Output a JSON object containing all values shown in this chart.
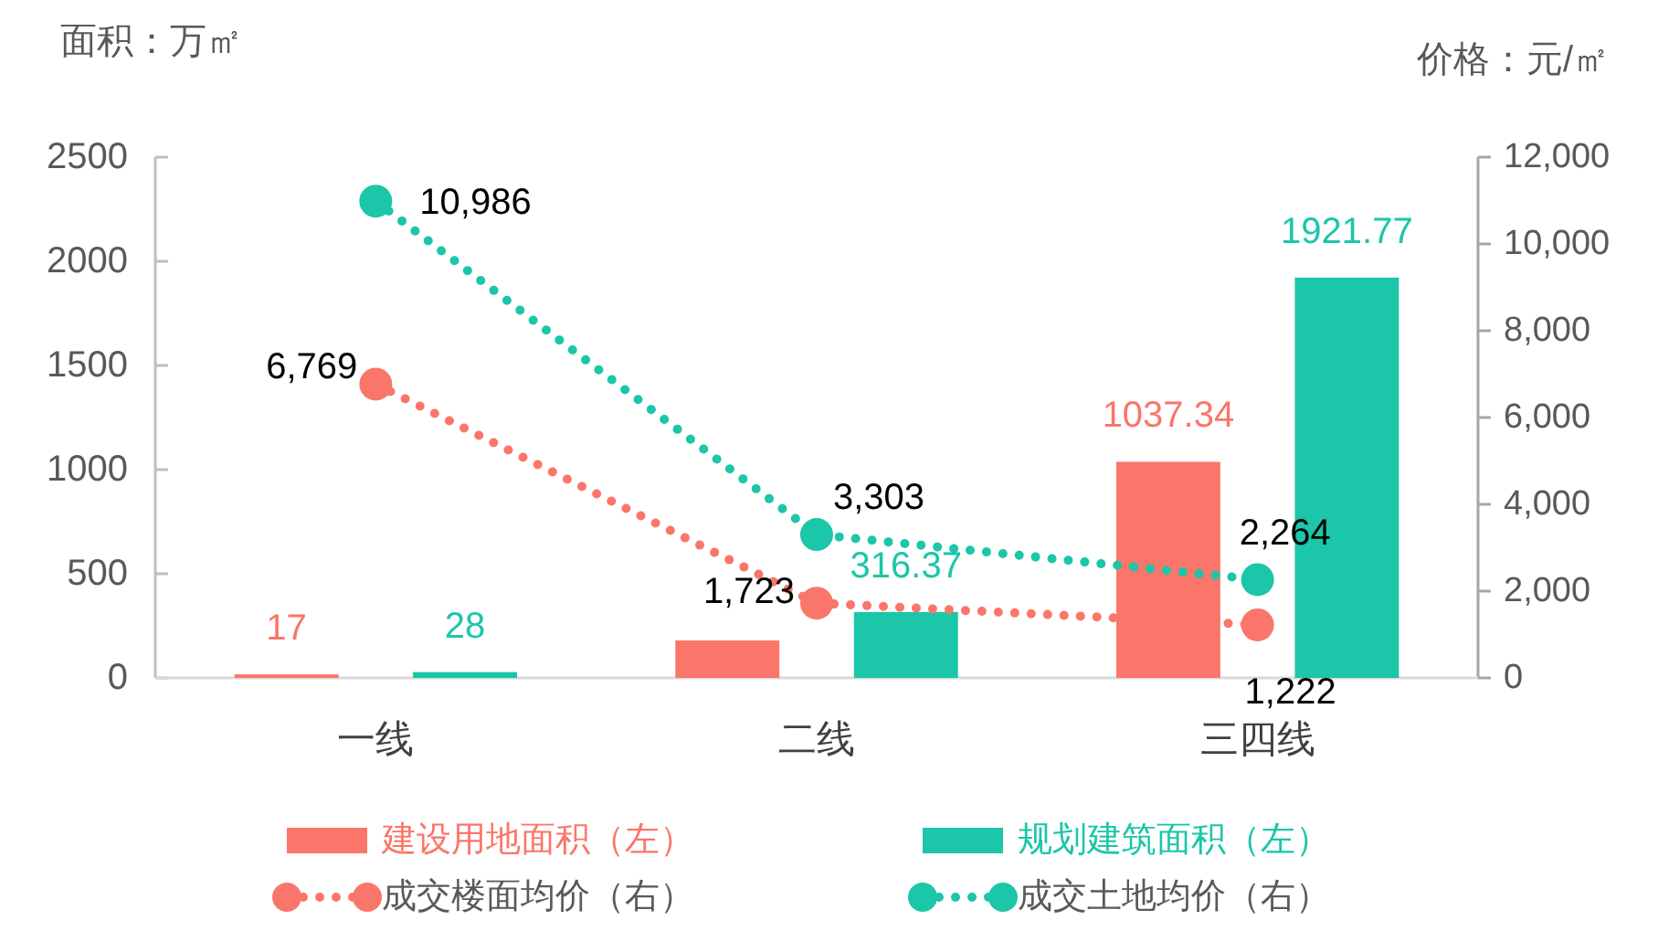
{
  "chart_data": {
    "type": "bar",
    "ylabel": "面积：万㎡",
    "y2label": "价格：元/㎡",
    "categories": [
      "一线",
      "二线",
      "三四线"
    ],
    "series": [
      {
        "name": "建设用地面积（左）",
        "color": "#fa766a",
        "values": [
          17,
          180,
          1037.34
        ],
        "value_labels": [
          "17",
          null,
          "1037.34"
        ]
      },
      {
        "name": "规划建筑面积（左）",
        "color": "#1bc6a9",
        "values": [
          28,
          316.37,
          1921.77
        ],
        "value_labels": [
          "28",
          "316.37",
          "1921.77"
        ]
      },
      {
        "name": "成交楼面均价（右）",
        "type": "line",
        "axis": "y2",
        "color": "#fa766a",
        "values": [
          6769,
          1723,
          1222
        ],
        "value_labels": [
          "6,769",
          "1,723",
          "1,222"
        ]
      },
      {
        "name": "成交土地均价（右）",
        "type": "line",
        "axis": "y2",
        "color": "#1bc6a9",
        "values": [
          10986,
          3303,
          2264
        ],
        "value_labels": [
          "10,986",
          "3,303",
          "2,264"
        ]
      }
    ],
    "ylim": [
      0,
      2500
    ],
    "yticks": [
      0,
      500,
      1000,
      1500,
      2000,
      2500
    ],
    "y2lim": [
      0,
      12000
    ],
    "y2ticks": [
      0,
      {
        "value": 2000,
        "label": "2,000"
      },
      {
        "value": 4000,
        "label": "4,000"
      },
      {
        "value": 6000,
        "label": "6,000"
      },
      {
        "value": 8000,
        "label": "8,000"
      },
      {
        "value": 10000,
        "label": "10,000"
      },
      {
        "value": 12000,
        "label": "12,000"
      }
    ],
    "marker": "circle",
    "line_style": "dotted",
    "legend": "bottom"
  }
}
